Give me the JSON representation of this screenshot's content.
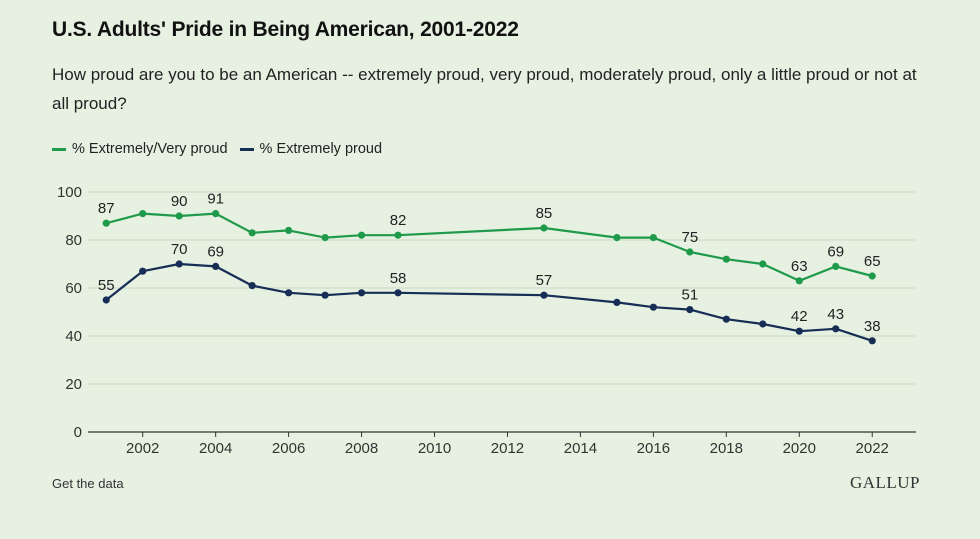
{
  "header": {
    "title": "U.S. Adults' Pride in Being American, 2001-2022",
    "subtitle": "How proud are you to be an American -- extremely proud, very proud, moderately proud, only a little proud or not at all proud?"
  },
  "footer": {
    "link_label": "Get the data",
    "brand": "GALLUP"
  },
  "colors": {
    "series1": "#1e9a4a",
    "series2": "#162d56",
    "grid": "#c9d9c2",
    "axis": "#333333"
  },
  "chart_data": {
    "type": "line",
    "title": "U.S. Adults' Pride in Being American, 2001-2022",
    "xlabel": "",
    "ylabel": "",
    "xlim": [
      2000.5,
      2023.2
    ],
    "ylim": [
      0,
      100
    ],
    "y_ticks": [
      0,
      20,
      40,
      60,
      80,
      100
    ],
    "x_ticks": [
      2002,
      2004,
      2006,
      2008,
      2010,
      2012,
      2014,
      2016,
      2018,
      2020,
      2022
    ],
    "grid": true,
    "legend": "top-left",
    "series": [
      {
        "name": "% Extremely/Very proud",
        "x": [
          2001,
          2002,
          2003,
          2004,
          2005,
          2006,
          2007,
          2008,
          2009,
          2013,
          2015,
          2016,
          2017,
          2018,
          2019,
          2020,
          2021,
          2022
        ],
        "values": [
          87,
          91,
          90,
          91,
          83,
          84,
          81,
          82,
          82,
          85,
          81,
          81,
          75,
          72,
          70,
          63,
          69,
          65
        ],
        "labeled": [
          2001,
          2003,
          2004,
          2009,
          2013,
          2017,
          2020,
          2021,
          2022
        ]
      },
      {
        "name": "% Extremely proud",
        "x": [
          2001,
          2002,
          2003,
          2004,
          2005,
          2006,
          2007,
          2008,
          2009,
          2013,
          2015,
          2016,
          2017,
          2018,
          2019,
          2020,
          2021,
          2022
        ],
        "values": [
          55,
          67,
          70,
          69,
          61,
          58,
          57,
          58,
          58,
          57,
          54,
          52,
          51,
          47,
          45,
          42,
          43,
          38
        ],
        "labeled": [
          2001,
          2003,
          2004,
          2009,
          2013,
          2017,
          2020,
          2021,
          2022
        ]
      }
    ]
  }
}
